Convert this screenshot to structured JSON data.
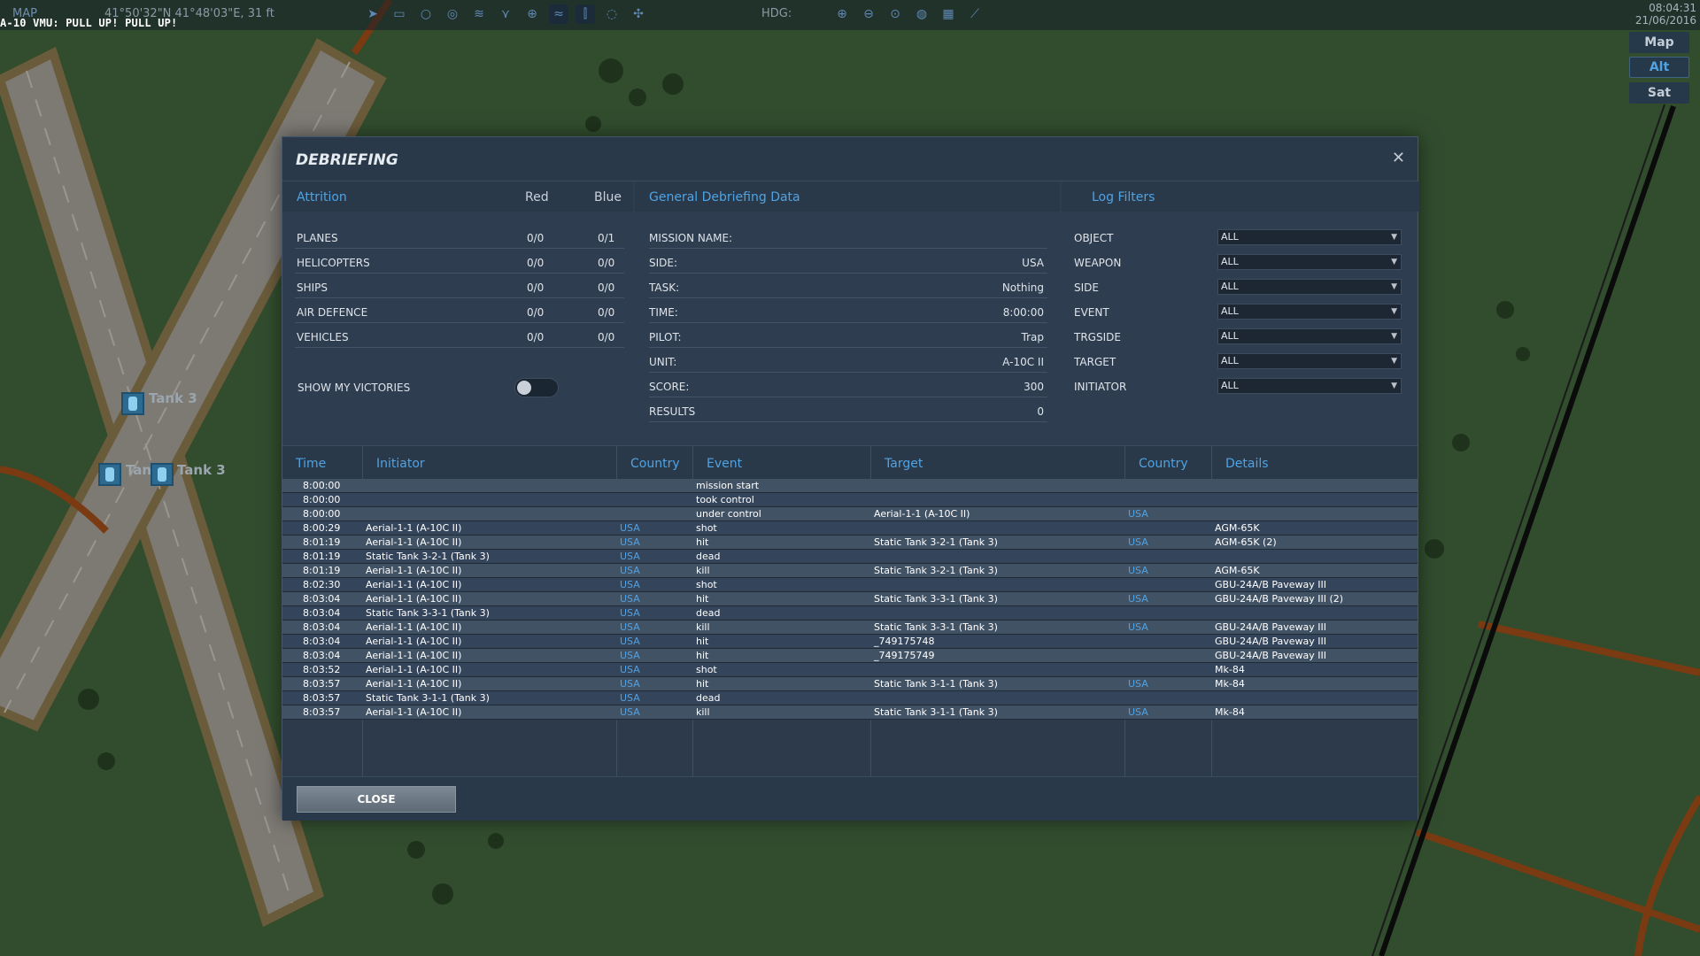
{
  "topbar": {
    "map_label": "MAP",
    "coords": "41°50'32\"N 41°48'03\"E, 31 ft",
    "hdg": "HDG:",
    "clock_time": "08:04:31",
    "clock_date": "21/06/2016",
    "tool_icons_left": [
      "send-icon",
      "radar-icon",
      "circle-icon",
      "layers-icon",
      "route-icon",
      "nodes-icon",
      "crosshair-icon",
      "wifi-icon",
      "tower-icon",
      "chat-icon",
      "move-icon"
    ],
    "tool_icons_right": [
      "zoom-in-icon",
      "zoom-out-icon",
      "zoom-fit-icon",
      "globe-icon",
      "grid-icon",
      "ruler-icon"
    ]
  },
  "warning": "A-10 VMU: PULL UP! PULL UP!",
  "map_types": [
    {
      "label": "Map",
      "active": false
    },
    {
      "label": "Alt",
      "active": true
    },
    {
      "label": "Sat",
      "active": false
    }
  ],
  "map_units": [
    {
      "label": "Tank 3"
    },
    {
      "label": "Tank 3"
    },
    {
      "label": "Tank 3"
    }
  ],
  "dialog": {
    "title": "DEBRIEFING",
    "attrition": {
      "heading": "Attrition",
      "red_label": "Red",
      "blue_label": "Blue",
      "rows": [
        {
          "name": "PLANES",
          "red": "0/0",
          "blue": "0/1"
        },
        {
          "name": "HELICOPTERS",
          "red": "0/0",
          "blue": "0/0"
        },
        {
          "name": "SHIPS",
          "red": "0/0",
          "blue": "0/0"
        },
        {
          "name": "AIR DEFENCE",
          "red": "0/0",
          "blue": "0/0"
        },
        {
          "name": "VEHICLES",
          "red": "0/0",
          "blue": "0/0"
        }
      ],
      "victories_label": "SHOW MY VICTORIES"
    },
    "general": {
      "heading": "General Debriefing Data",
      "rows": [
        {
          "label": "MISSION NAME:",
          "value": ""
        },
        {
          "label": "SIDE:",
          "value": "USA"
        },
        {
          "label": "TASK:",
          "value": "Nothing"
        },
        {
          "label": "TIME:",
          "value": "8:00:00"
        },
        {
          "label": "PILOT:",
          "value": "Trap"
        },
        {
          "label": "UNIT:",
          "value": "A-10C II"
        },
        {
          "label": "SCORE:",
          "value": "300"
        },
        {
          "label": "RESULTS",
          "value": "0"
        }
      ]
    },
    "filters": {
      "heading": "Log Filters",
      "rows": [
        {
          "label": "OBJECT",
          "value": "ALL"
        },
        {
          "label": "WEAPON",
          "value": "ALL"
        },
        {
          "label": "SIDE",
          "value": "ALL"
        },
        {
          "label": "EVENT",
          "value": "ALL"
        },
        {
          "label": "TRGSIDE",
          "value": "ALL"
        },
        {
          "label": "TARGET",
          "value": "ALL"
        },
        {
          "label": "INITIATOR",
          "value": "ALL"
        }
      ]
    },
    "log": {
      "columns": [
        "Time",
        "Initiator",
        "Country",
        "Event",
        "Target",
        "Country",
        "Details"
      ],
      "rows": [
        {
          "time": "8:00:00",
          "initiator": "",
          "country": "",
          "event": "mission start",
          "target": "",
          "tcountry": "",
          "details": ""
        },
        {
          "time": "8:00:00",
          "initiator": "",
          "country": "",
          "event": "took control",
          "target": "",
          "tcountry": "",
          "details": ""
        },
        {
          "time": "8:00:00",
          "initiator": "",
          "country": "",
          "event": "under control",
          "target": "Aerial-1-1 (A-10C II)",
          "tcountry": "USA",
          "details": ""
        },
        {
          "time": "8:00:29",
          "initiator": "Aerial-1-1 (A-10C II)",
          "country": "USA",
          "event": "shot",
          "target": "",
          "tcountry": "",
          "details": "AGM-65K"
        },
        {
          "time": "8:01:19",
          "initiator": "Aerial-1-1 (A-10C II)",
          "country": "USA",
          "event": "hit",
          "target": "Static Tank 3-2-1 (Tank 3)",
          "tcountry": "USA",
          "details": "AGM-65K (2)"
        },
        {
          "time": "8:01:19",
          "initiator": "Static Tank 3-2-1 (Tank 3)",
          "country": "USA",
          "event": "dead",
          "target": "",
          "tcountry": "",
          "details": ""
        },
        {
          "time": "8:01:19",
          "initiator": "Aerial-1-1 (A-10C II)",
          "country": "USA",
          "event": "kill",
          "target": "Static Tank 3-2-1 (Tank 3)",
          "tcountry": "USA",
          "details": "AGM-65K"
        },
        {
          "time": "8:02:30",
          "initiator": "Aerial-1-1 (A-10C II)",
          "country": "USA",
          "event": "shot",
          "target": "",
          "tcountry": "",
          "details": "GBU-24A/B Paveway III"
        },
        {
          "time": "8:03:04",
          "initiator": "Aerial-1-1 (A-10C II)",
          "country": "USA",
          "event": "hit",
          "target": "Static Tank 3-3-1 (Tank 3)",
          "tcountry": "USA",
          "details": "GBU-24A/B Paveway III (2)"
        },
        {
          "time": "8:03:04",
          "initiator": "Static Tank 3-3-1 (Tank 3)",
          "country": "USA",
          "event": "dead",
          "target": "",
          "tcountry": "",
          "details": ""
        },
        {
          "time": "8:03:04",
          "initiator": "Aerial-1-1 (A-10C II)",
          "country": "USA",
          "event": "kill",
          "target": "Static Tank 3-3-1 (Tank 3)",
          "tcountry": "USA",
          "details": "GBU-24A/B Paveway III"
        },
        {
          "time": "8:03:04",
          "initiator": "Aerial-1-1 (A-10C II)",
          "country": "USA",
          "event": "hit",
          "target": "_749175748",
          "tcountry": "",
          "details": "GBU-24A/B Paveway III"
        },
        {
          "time": "8:03:04",
          "initiator": "Aerial-1-1 (A-10C II)",
          "country": "USA",
          "event": "hit",
          "target": "_749175749",
          "tcountry": "",
          "details": "GBU-24A/B Paveway III"
        },
        {
          "time": "8:03:52",
          "initiator": "Aerial-1-1 (A-10C II)",
          "country": "USA",
          "event": "shot",
          "target": "",
          "tcountry": "",
          "details": "Mk-84"
        },
        {
          "time": "8:03:57",
          "initiator": "Aerial-1-1 (A-10C II)",
          "country": "USA",
          "event": "hit",
          "target": "Static Tank 3-1-1 (Tank 3)",
          "tcountry": "USA",
          "details": "Mk-84"
        },
        {
          "time": "8:03:57",
          "initiator": "Static Tank 3-1-1 (Tank 3)",
          "country": "USA",
          "event": "dead",
          "target": "",
          "tcountry": "",
          "details": ""
        },
        {
          "time": "8:03:57",
          "initiator": "Aerial-1-1 (A-10C II)",
          "country": "USA",
          "event": "kill",
          "target": "Static Tank 3-1-1 (Tank 3)",
          "tcountry": "USA",
          "details": "Mk-84"
        }
      ]
    },
    "close_label": "CLOSE",
    "close_x": "✕"
  },
  "colors": {
    "accent": "#4fa3e3",
    "dialog_bg": "#2e3d4f",
    "header_bg": "#2a394a",
    "map_green": "#2f4a2c"
  }
}
